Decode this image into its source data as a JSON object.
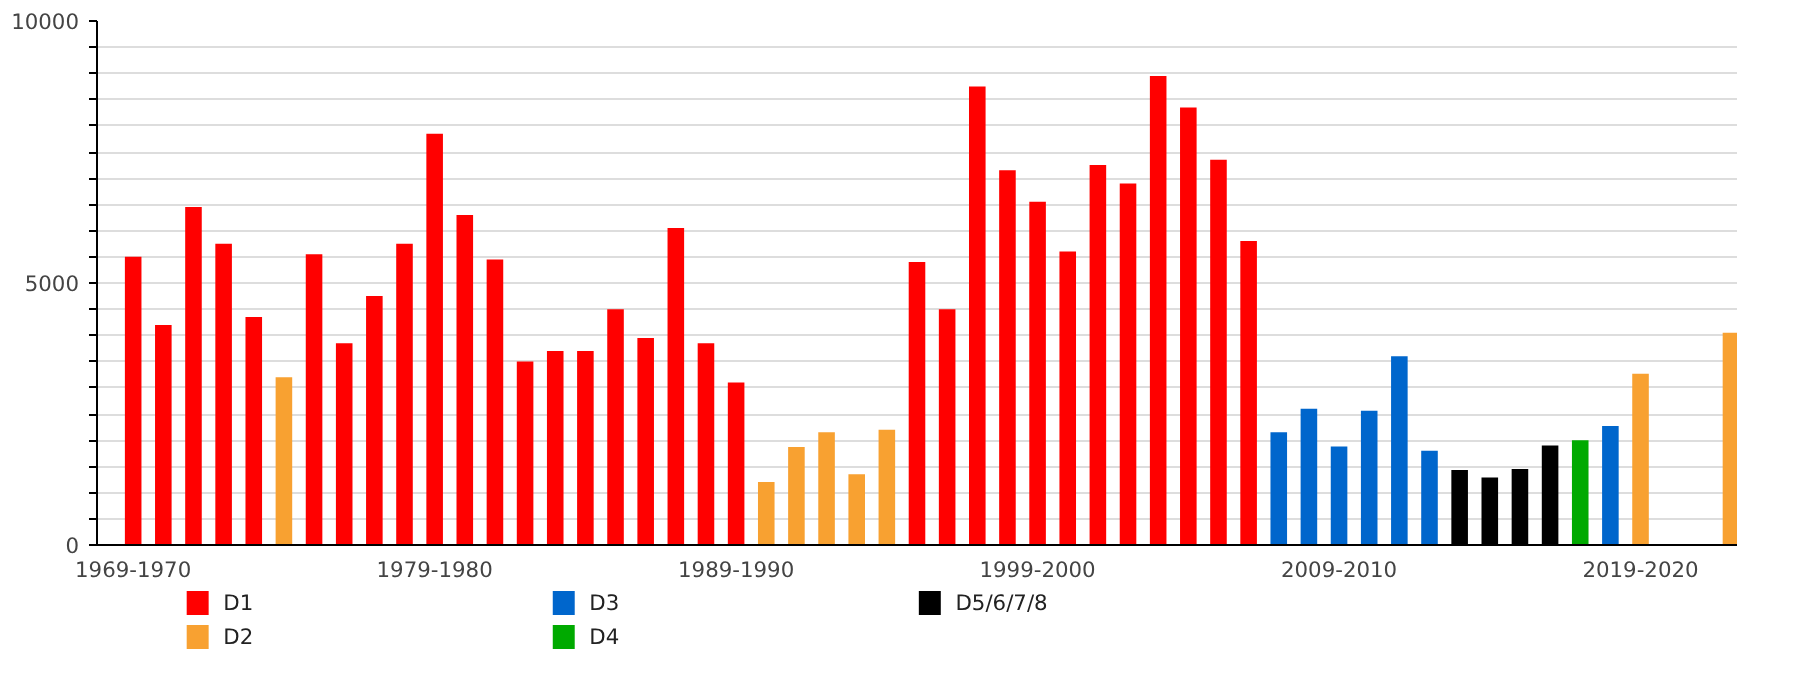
{
  "chart_data": {
    "type": "bar",
    "categories": [
      "1969-1970",
      null,
      null,
      null,
      null,
      null,
      null,
      null,
      null,
      null,
      "1979-1980",
      null,
      null,
      null,
      null,
      null,
      null,
      null,
      null,
      null,
      "1989-1990",
      null,
      null,
      null,
      null,
      null,
      null,
      null,
      null,
      null,
      "1999-2000",
      null,
      null,
      null,
      null,
      null,
      null,
      null,
      null,
      null,
      "2009-2010",
      null,
      null,
      null,
      null,
      null,
      null,
      null,
      null,
      null,
      "2019-2020",
      null,
      null,
      null
    ],
    "series": [
      {
        "name": "D1",
        "color": "#ff0000",
        "values": [
          5500,
          4200,
          6450,
          5750,
          4350,
          null,
          5550,
          3850,
          4750,
          5750,
          7850,
          6300,
          5450,
          3500,
          3700,
          3700,
          4500,
          3950,
          6050,
          3850,
          3100,
          null,
          null,
          null,
          null,
          null,
          5400,
          4500,
          8750,
          7150,
          6550,
          5600,
          7250,
          6900,
          8950,
          8350,
          7350,
          5800,
          null,
          null,
          null,
          null,
          null,
          null,
          null,
          null,
          null,
          null,
          null,
          null,
          null,
          null,
          null,
          null
        ]
      },
      {
        "name": "D2",
        "color": "#f8a131",
        "values": [
          null,
          null,
          null,
          null,
          null,
          3200,
          null,
          null,
          null,
          null,
          null,
          null,
          null,
          null,
          null,
          null,
          null,
          null,
          null,
          null,
          null,
          1200,
          1870,
          2150,
          1350,
          2200,
          null,
          null,
          null,
          null,
          null,
          null,
          null,
          null,
          null,
          null,
          null,
          null,
          null,
          null,
          null,
          null,
          null,
          null,
          null,
          null,
          null,
          null,
          null,
          null,
          3270,
          null,
          null,
          4050
        ]
      },
      {
        "name": "D3",
        "color": "#0066cc",
        "values": [
          null,
          null,
          null,
          null,
          null,
          null,
          null,
          null,
          null,
          null,
          null,
          null,
          null,
          null,
          null,
          null,
          null,
          null,
          null,
          null,
          null,
          null,
          null,
          null,
          null,
          null,
          null,
          null,
          null,
          null,
          null,
          null,
          null,
          null,
          null,
          null,
          null,
          null,
          2150,
          2600,
          1880,
          2560,
          3600,
          1800,
          null,
          null,
          null,
          null,
          null,
          2270,
          null,
          null,
          null,
          null
        ]
      },
      {
        "name": "D4",
        "color": "#00aa00",
        "values": [
          null,
          null,
          null,
          null,
          null,
          null,
          null,
          null,
          null,
          null,
          null,
          null,
          null,
          null,
          null,
          null,
          null,
          null,
          null,
          null,
          null,
          null,
          null,
          null,
          null,
          null,
          null,
          null,
          null,
          null,
          null,
          null,
          null,
          null,
          null,
          null,
          null,
          null,
          null,
          null,
          null,
          null,
          null,
          null,
          null,
          null,
          null,
          null,
          2000,
          null,
          null,
          null,
          null,
          null
        ]
      },
      {
        "name": "D5/6/7/8",
        "color": "#000000",
        "values": [
          null,
          null,
          null,
          null,
          null,
          null,
          null,
          null,
          null,
          null,
          null,
          null,
          null,
          null,
          null,
          null,
          null,
          null,
          null,
          null,
          null,
          null,
          null,
          null,
          null,
          null,
          null,
          null,
          null,
          null,
          null,
          null,
          null,
          null,
          null,
          null,
          null,
          null,
          null,
          null,
          null,
          null,
          null,
          null,
          1430,
          1290,
          1450,
          1900,
          null,
          null,
          null,
          null,
          null,
          null
        ]
      }
    ],
    "ylim": [
      0,
      10000
    ],
    "yticks": [
      0,
      {
        "value": 500,
        "label": null
      },
      {
        "value": 1000,
        "label": null
      },
      {
        "value": 1500,
        "label": null
      },
      {
        "value": 2000,
        "label": null
      },
      {
        "value": 2500,
        "label": null
      },
      {
        "value": 3000,
        "label": null
      },
      {
        "value": 3500,
        "label": null
      },
      {
        "value": 4000,
        "label": null
      },
      {
        "value": 4500,
        "label": null
      },
      5000,
      {
        "value": 5500,
        "label": null
      },
      {
        "value": 6000,
        "label": null
      },
      {
        "value": 6500,
        "label": null
      },
      {
        "value": 7000,
        "label": null
      },
      {
        "value": 7500,
        "label": null
      },
      {
        "value": 8000,
        "label": null
      },
      {
        "value": 8500,
        "label": null
      },
      {
        "value": 9000,
        "label": null
      },
      {
        "value": 9500,
        "label": null
      },
      10000
    ],
    "grid": "y",
    "legend": "bottom"
  }
}
